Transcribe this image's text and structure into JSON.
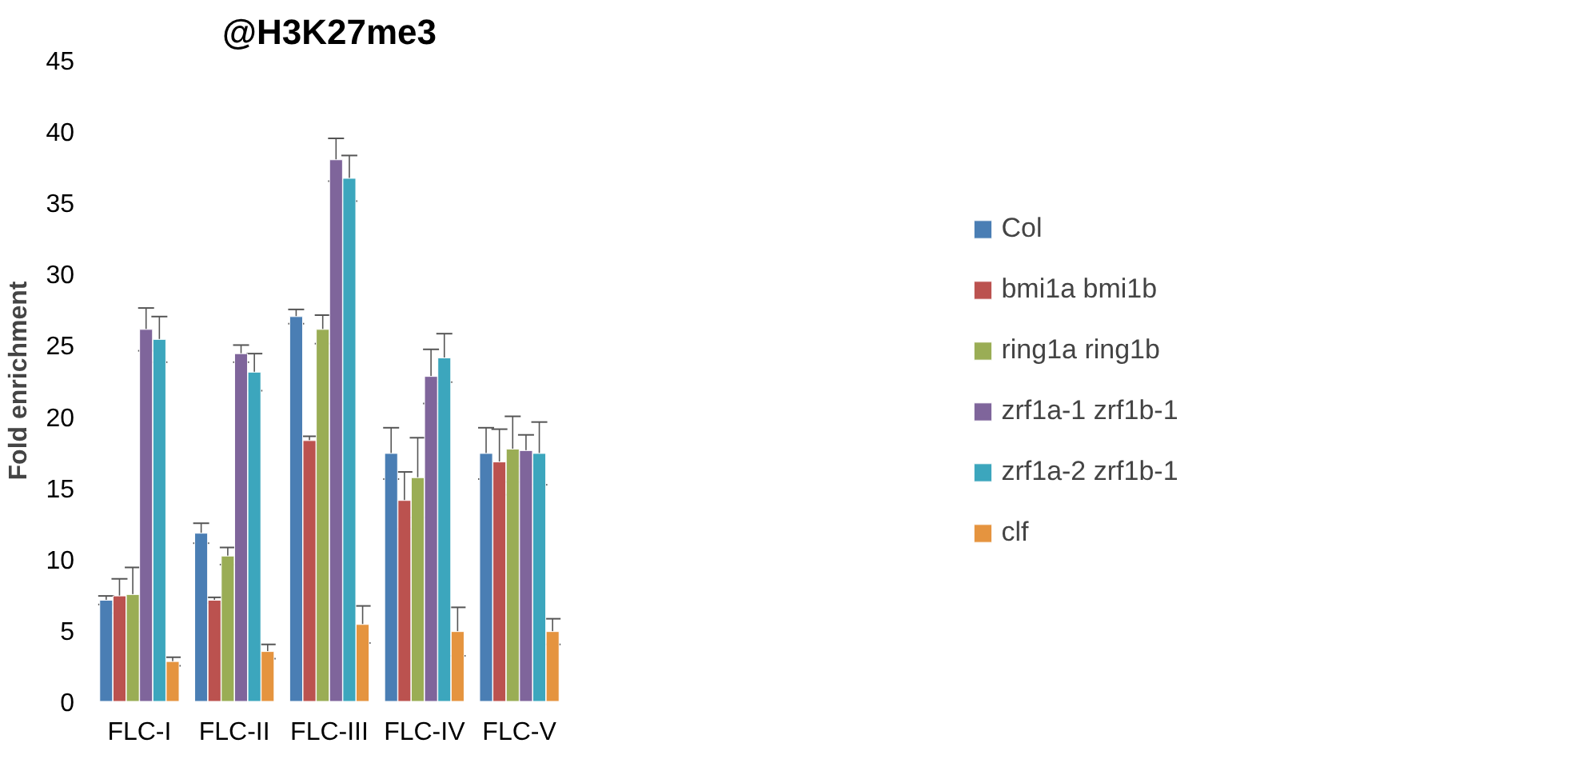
{
  "chart_data": {
    "type": "bar",
    "title": "@H3K27me3",
    "ylabel": "Fold enrichment",
    "categories": [
      "FLC-I",
      "FLC-II",
      "FLC-III",
      "FLC-IV",
      "FLC-V"
    ],
    "series": [
      {
        "name": "Col",
        "color": "#4a7eb4",
        "values": [
          7.1,
          11.8,
          27.0,
          17.4,
          17.4
        ],
        "errors": [
          0.3,
          0.7,
          0.5,
          1.8,
          1.8
        ]
      },
      {
        "name": "bmi1a bmi1b",
        "color": "#bb524f",
        "values": [
          7.4,
          7.1,
          18.3,
          14.1,
          16.8
        ],
        "errors": [
          1.2,
          0.2,
          0.3,
          2.0,
          2.3
        ]
      },
      {
        "name": "ring1a ring1b",
        "color": "#9aad55",
        "values": [
          7.5,
          10.2,
          26.1,
          15.7,
          17.7
        ],
        "errors": [
          1.9,
          0.6,
          1.0,
          2.8,
          2.3
        ]
      },
      {
        "name": "zrf1a-1 zrf1b-1",
        "color": "#7f659b",
        "values": [
          26.1,
          24.4,
          38.0,
          22.8,
          17.6
        ],
        "errors": [
          1.5,
          0.6,
          1.5,
          1.9,
          1.1
        ]
      },
      {
        "name": "zrf1a-2 zrf1b-1",
        "color": "#3ca6bd",
        "values": [
          25.4,
          23.1,
          36.7,
          24.1,
          17.4
        ],
        "errors": [
          1.6,
          1.3,
          1.6,
          1.7,
          2.2
        ]
      },
      {
        "name": "clf",
        "color": "#e5943f",
        "values": [
          2.8,
          3.5,
          5.4,
          4.9,
          4.9
        ],
        "errors": [
          0.3,
          0.5,
          1.3,
          1.7,
          0.9
        ]
      }
    ],
    "ylim": [
      0,
      45
    ],
    "yticks": [
      0,
      5,
      10,
      15,
      20,
      25,
      30,
      35,
      40,
      45
    ],
    "grid": false,
    "legend": "right"
  }
}
